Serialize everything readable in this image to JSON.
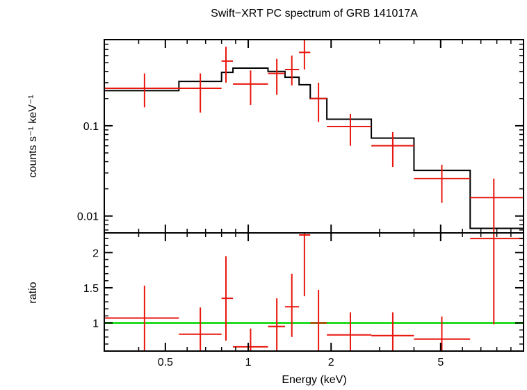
{
  "chart_data": [
    {
      "type": "scatter",
      "title": "Swift−XRT PC spectrum of GRB 141017A",
      "xlabel": "Energy (keV)",
      "ylabel": "counts s⁻¹ keV⁻¹",
      "xscale": "log",
      "yscale": "log",
      "xlim": [
        0.3,
        10
      ],
      "ylim": [
        0.0065,
        0.9
      ],
      "yticks": [
        "0.1",
        "0.01"
      ],
      "colors": {
        "data": "#e8160c",
        "model": "#000000",
        "frame": "#000000"
      },
      "data_series": {
        "name": "",
        "points": [
          {
            "x": 0.42,
            "xlo": 0.3,
            "xhi": 0.56,
            "y": 0.26,
            "ylo": 0.16,
            "yhi": 0.38
          },
          {
            "x": 0.67,
            "xlo": 0.56,
            "xhi": 0.8,
            "y": 0.26,
            "ylo": 0.14,
            "yhi": 0.38
          },
          {
            "x": 0.83,
            "xlo": 0.8,
            "xhi": 0.88,
            "y": 0.52,
            "ylo": 0.3,
            "yhi": 0.75
          },
          {
            "x": 1.02,
            "xlo": 0.88,
            "xhi": 1.18,
            "y": 0.29,
            "ylo": 0.17,
            "yhi": 0.41
          },
          {
            "x": 1.27,
            "xlo": 1.18,
            "xhi": 1.36,
            "y": 0.38,
            "ylo": 0.22,
            "yhi": 0.55
          },
          {
            "x": 1.44,
            "xlo": 1.36,
            "xhi": 1.53,
            "y": 0.42,
            "ylo": 0.28,
            "yhi": 0.6
          },
          {
            "x": 1.6,
            "xlo": 1.53,
            "xhi": 1.68,
            "y": 0.65,
            "ylo": 0.42,
            "yhi": 0.95
          },
          {
            "x": 1.8,
            "xlo": 1.68,
            "xhi": 1.93,
            "y": 0.2,
            "ylo": 0.11,
            "yhi": 0.3
          },
          {
            "x": 2.35,
            "xlo": 1.93,
            "xhi": 2.8,
            "y": 0.098,
            "ylo": 0.06,
            "yhi": 0.135
          },
          {
            "x": 3.35,
            "xlo": 2.8,
            "xhi": 4.0,
            "y": 0.06,
            "ylo": 0.035,
            "yhi": 0.085
          },
          {
            "x": 5.05,
            "xlo": 4.0,
            "xhi": 6.4,
            "y": 0.026,
            "ylo": 0.014,
            "yhi": 0.037
          },
          {
            "x": 7.8,
            "xlo": 6.4,
            "xhi": 10.0,
            "y": 0.016,
            "ylo": 0.0065,
            "yhi": 0.026
          }
        ]
      },
      "model_series": {
        "name": "",
        "steps": [
          {
            "xlo": 0.3,
            "xhi": 0.56,
            "y": 0.245
          },
          {
            "xlo": 0.56,
            "xhi": 0.8,
            "y": 0.31
          },
          {
            "xlo": 0.8,
            "xhi": 0.88,
            "y": 0.39
          },
          {
            "xlo": 0.88,
            "xhi": 1.18,
            "y": 0.435
          },
          {
            "xlo": 1.18,
            "xhi": 1.36,
            "y": 0.4
          },
          {
            "xlo": 1.36,
            "xhi": 1.53,
            "y": 0.345
          },
          {
            "xlo": 1.53,
            "xhi": 1.68,
            "y": 0.285
          },
          {
            "xlo": 1.68,
            "xhi": 1.93,
            "y": 0.2
          },
          {
            "xlo": 1.93,
            "xhi": 2.8,
            "y": 0.118
          },
          {
            "xlo": 2.8,
            "xhi": 4.0,
            "y": 0.073
          },
          {
            "xlo": 4.0,
            "xhi": 6.4,
            "y": 0.032
          },
          {
            "xlo": 6.4,
            "xhi": 10.0,
            "y": 0.0073
          }
        ]
      }
    },
    {
      "type": "scatter",
      "xlabel": "Energy (keV)",
      "ylabel": "ratio",
      "xscale": "log",
      "xlim": [
        0.3,
        10
      ],
      "ylim": [
        0.6,
        2.28
      ],
      "xticks": [
        "0.5",
        "1",
        "2",
        "5"
      ],
      "yticks": [
        "1",
        "1.5",
        "2"
      ],
      "reference_line": {
        "y": 1,
        "color": "#22dd22"
      },
      "data_series": {
        "name": "",
        "points": [
          {
            "x": 0.42,
            "xlo": 0.3,
            "xhi": 0.56,
            "y": 1.07,
            "ylo": 0.6,
            "yhi": 1.53
          },
          {
            "x": 0.67,
            "xlo": 0.56,
            "xhi": 0.8,
            "y": 0.84,
            "ylo": 0.6,
            "yhi": 1.22
          },
          {
            "x": 0.83,
            "xlo": 0.8,
            "xhi": 0.88,
            "y": 1.35,
            "ylo": 0.75,
            "yhi": 1.95
          },
          {
            "x": 1.02,
            "xlo": 0.88,
            "xhi": 1.18,
            "y": 0.66,
            "ylo": 0.6,
            "yhi": 0.92
          },
          {
            "x": 1.27,
            "xlo": 1.18,
            "xhi": 1.36,
            "y": 0.95,
            "ylo": 0.6,
            "yhi": 1.35
          },
          {
            "x": 1.44,
            "xlo": 1.36,
            "xhi": 1.53,
            "y": 1.23,
            "ylo": 0.8,
            "yhi": 1.7
          },
          {
            "x": 1.6,
            "xlo": 1.53,
            "xhi": 1.68,
            "y": 2.25,
            "ylo": 1.38,
            "yhi": 2.28
          },
          {
            "x": 1.8,
            "xlo": 1.68,
            "xhi": 1.93,
            "y": 1.0,
            "ylo": 0.6,
            "yhi": 1.47
          },
          {
            "x": 2.35,
            "xlo": 1.93,
            "xhi": 2.8,
            "y": 0.83,
            "ylo": 0.6,
            "yhi": 1.15
          },
          {
            "x": 3.35,
            "xlo": 2.8,
            "xhi": 4.0,
            "y": 0.82,
            "ylo": 0.6,
            "yhi": 1.15
          },
          {
            "x": 5.05,
            "xlo": 4.0,
            "xhi": 6.4,
            "y": 0.77,
            "ylo": 0.6,
            "yhi": 1.09
          },
          {
            "x": 7.8,
            "xlo": 6.4,
            "xhi": 10.0,
            "y": 2.2,
            "ylo": 0.98,
            "yhi": 2.28
          }
        ]
      }
    }
  ]
}
